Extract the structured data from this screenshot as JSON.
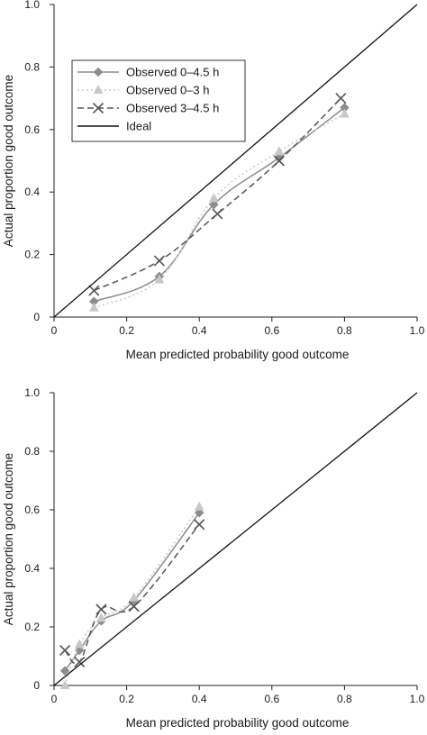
{
  "chart_data": [
    {
      "type": "line",
      "xlabel": "Mean predicted probability good outcome",
      "ylabel": "Actual proportion good outcome",
      "xlim": [
        0,
        1.0
      ],
      "ylim": [
        0,
        1.0
      ],
      "xticks": [
        "0",
        "0.2",
        "0.4",
        "0.6",
        "0.8",
        "1.0"
      ],
      "yticks": [
        "0",
        "0.2",
        "0.4",
        "0.6",
        "0.8",
        "1.0"
      ],
      "grid": false,
      "legend_position": "top-left",
      "series": [
        {
          "name": "Observed 0–4.5 h",
          "style": "solid",
          "marker": "diamond",
          "color": "#8c8c8c",
          "x": [
            0.11,
            0.29,
            0.44,
            0.62,
            0.8
          ],
          "y": [
            0.05,
            0.13,
            0.36,
            0.51,
            0.67
          ]
        },
        {
          "name": "Observed 0–3 h",
          "style": "dotted",
          "marker": "triangle",
          "color": "#c8c8c8",
          "x": [
            0.11,
            0.29,
            0.44,
            0.62,
            0.8
          ],
          "y": [
            0.03,
            0.12,
            0.38,
            0.53,
            0.65
          ]
        },
        {
          "name": "Observed 3–4.5 h",
          "style": "dashed",
          "marker": "x",
          "color": "#555555",
          "x": [
            0.11,
            0.29,
            0.45,
            0.62,
            0.79
          ],
          "y": [
            0.085,
            0.18,
            0.33,
            0.5,
            0.7
          ]
        },
        {
          "name": "Ideal",
          "style": "solid",
          "marker": "none",
          "color": "#111111",
          "x": [
            0,
            1.0
          ],
          "y": [
            0,
            1.0
          ]
        }
      ]
    },
    {
      "type": "line",
      "xlabel": "Mean predicted probability good outcome",
      "ylabel": "Actual proportion good outcome",
      "xlim": [
        0,
        1.0
      ],
      "ylim": [
        0,
        1.0
      ],
      "xticks": [
        "0",
        "0.2",
        "0.4",
        "0.6",
        "0.8",
        "1.0"
      ],
      "yticks": [
        "0",
        "0.2",
        "0.4",
        "0.6",
        "0.8",
        "1.0"
      ],
      "grid": false,
      "series": [
        {
          "name": "Observed 0–4.5 h",
          "style": "solid",
          "marker": "diamond",
          "color": "#8c8c8c",
          "x": [
            0.03,
            0.07,
            0.13,
            0.22,
            0.4
          ],
          "y": [
            0.05,
            0.12,
            0.22,
            0.29,
            0.59
          ]
        },
        {
          "name": "Observed 0–3 h",
          "style": "dotted",
          "marker": "triangle",
          "color": "#c8c8c8",
          "x": [
            0.03,
            0.07,
            0.13,
            0.22,
            0.4
          ],
          "y": [
            0.0,
            0.14,
            0.23,
            0.3,
            0.61
          ]
        },
        {
          "name": "Observed 3–4.5 h",
          "style": "dashed",
          "marker": "x",
          "color": "#555555",
          "x": [
            0.03,
            0.07,
            0.13,
            0.22,
            0.4
          ],
          "y": [
            0.12,
            0.08,
            0.26,
            0.27,
            0.55
          ]
        },
        {
          "name": "Ideal",
          "style": "solid",
          "marker": "none",
          "color": "#111111",
          "x": [
            0,
            1.0
          ],
          "y": [
            0,
            1.0
          ]
        }
      ]
    }
  ]
}
